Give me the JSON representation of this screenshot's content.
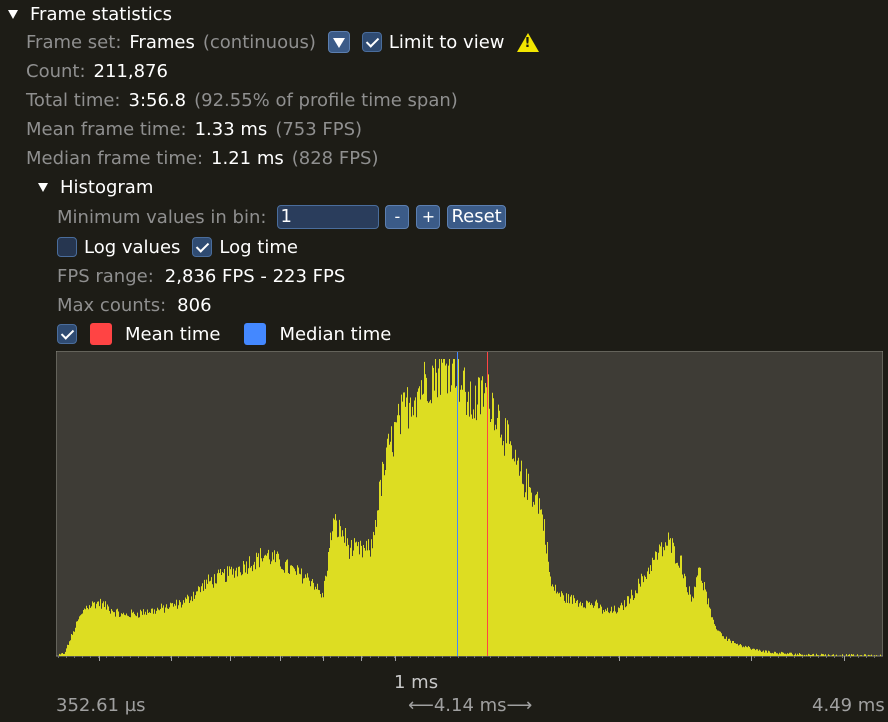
{
  "frame_stats": {
    "header": "Frame statistics",
    "frame_set_label": "Frame set:",
    "frame_set_value": "Frames",
    "frame_set_mode": "(continuous)",
    "limit_to_view_label": "Limit to view",
    "limit_to_view_checked": true,
    "count_label": "Count:",
    "count_value": "211,876",
    "total_time_label": "Total time:",
    "total_time_value": "3:56.8",
    "total_time_note": "(92.55% of profile time span)",
    "mean_label": "Mean frame time:",
    "mean_value": "1.33 ms",
    "mean_note": "(753 FPS)",
    "median_label": "Median frame time:",
    "median_value": "1.21 ms",
    "median_note": "(828 FPS)"
  },
  "histogram": {
    "header": "Histogram",
    "min_values_label": "Minimum values in bin:",
    "min_values_value": "1",
    "minus_label": "-",
    "plus_label": "+",
    "reset_label": "Reset",
    "log_values_label": "Log values",
    "log_values_checked": false,
    "log_time_label": "Log time",
    "log_time_checked": true,
    "fps_range_label": "FPS range:",
    "fps_range_value": "2,836 FPS - 223 FPS",
    "max_counts_label": "Max counts:",
    "max_counts_value": "806",
    "legend_checked": true,
    "mean_time_label": "Mean time",
    "median_time_label": "Median time",
    "axis_min_label": "352.61 µs",
    "axis_mid_label": "1 ms",
    "axis_span_label": "4.14 ms",
    "axis_max_label": "4.49 ms"
  },
  "colors": {
    "background": "#1d1c16",
    "plot_background": "#3e3c36",
    "bars": "#dddd22",
    "mean_line": "#ff4444",
    "median_line": "#4488ff",
    "checkbox": "#2f4b72"
  },
  "chart_data": {
    "type": "bar",
    "x_scale": "log",
    "x_range_ms": [
      0.35261,
      4.49
    ],
    "y_max_count": 806,
    "mean_ms": 1.33,
    "median_ms": 1.21,
    "profile_points": [
      [
        0.3526,
        0
      ],
      [
        0.36,
        8
      ],
      [
        0.375,
        95
      ],
      [
        0.385,
        135
      ],
      [
        0.4,
        145
      ],
      [
        0.43,
        110
      ],
      [
        0.48,
        125
      ],
      [
        0.52,
        145
      ],
      [
        0.56,
        200
      ],
      [
        0.6,
        225
      ],
      [
        0.64,
        255
      ],
      [
        0.67,
        275
      ],
      [
        0.7,
        255
      ],
      [
        0.73,
        230
      ],
      [
        0.77,
        210
      ],
      [
        0.8,
        160
      ],
      [
        0.825,
        360
      ],
      [
        0.85,
        335
      ],
      [
        0.87,
        290
      ],
      [
        0.9,
        285
      ],
      [
        0.93,
        290
      ],
      [
        0.955,
        455
      ],
      [
        0.98,
        560
      ],
      [
        1.01,
        630
      ],
      [
        1.05,
        700
      ],
      [
        1.09,
        740
      ],
      [
        1.13,
        770
      ],
      [
        1.17,
        790
      ],
      [
        1.2,
        806
      ],
      [
        1.23,
        735
      ],
      [
        1.26,
        680
      ],
      [
        1.29,
        690
      ],
      [
        1.32,
        720
      ],
      [
        1.36,
        680
      ],
      [
        1.4,
        610
      ],
      [
        1.44,
        530
      ],
      [
        1.48,
        480
      ],
      [
        1.52,
        450
      ],
      [
        1.56,
        420
      ],
      [
        1.59,
        340
      ],
      [
        1.62,
        190
      ],
      [
        1.68,
        160
      ],
      [
        1.75,
        150
      ],
      [
        1.85,
        140
      ],
      [
        1.92,
        120
      ],
      [
        2.0,
        125
      ],
      [
        2.08,
        165
      ],
      [
        2.16,
        215
      ],
      [
        2.24,
        270
      ],
      [
        2.33,
        310
      ],
      [
        2.42,
        255
      ],
      [
        2.5,
        150
      ],
      [
        2.55,
        240
      ],
      [
        2.6,
        190
      ],
      [
        2.67,
        90
      ],
      [
        2.77,
        50
      ],
      [
        2.9,
        30
      ],
      [
        3.05,
        16
      ],
      [
        3.25,
        8
      ],
      [
        3.55,
        4
      ],
      [
        3.9,
        2
      ],
      [
        4.2,
        1
      ],
      [
        4.49,
        0
      ]
    ]
  }
}
